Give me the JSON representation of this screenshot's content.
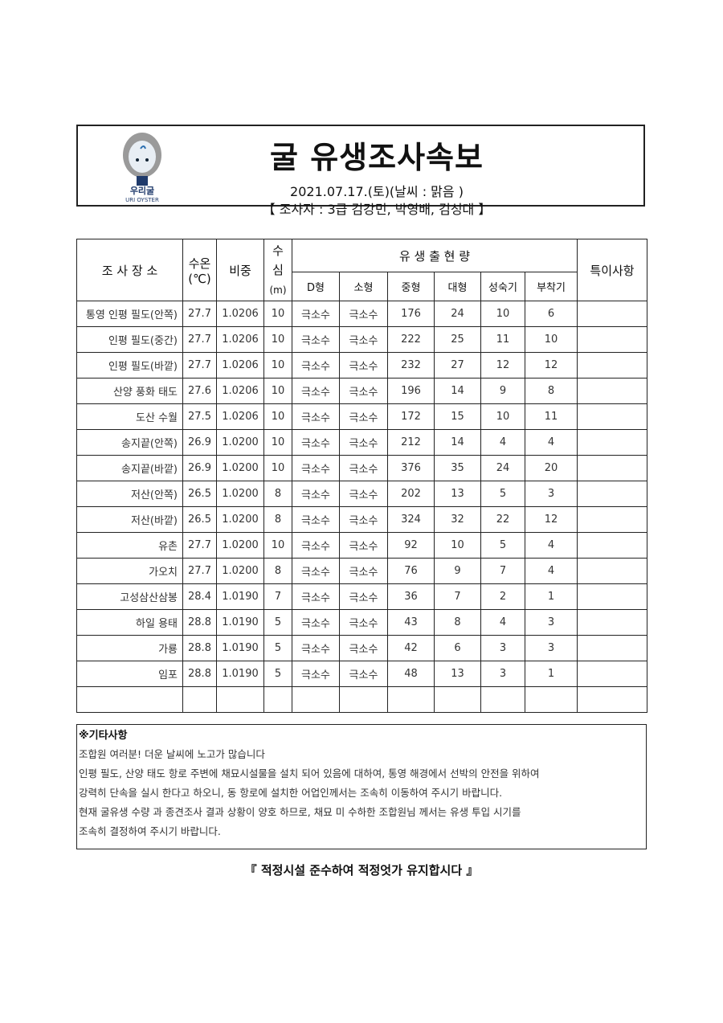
{
  "header": {
    "title": "굴 유생조사속보",
    "date_line": "2021.07.17.(토)(날씨 : 맑음 )",
    "surveyor_line": "【 조사자 : 3급 김강민, 박영배, 김성대 】",
    "logo_text": "우리굴",
    "logo_sub": "URI OYSTER"
  },
  "table": {
    "headers": {
      "location": "조 사 장 소",
      "temp": "수온",
      "temp_unit": "(℃)",
      "density": "비중",
      "depth1": "수",
      "depth2": "심",
      "depth3": "(m)",
      "larvae": "유   생   출   현   량",
      "remarks": "특이사항",
      "sub": [
        "D형",
        "소형",
        "중형",
        "대형",
        "성숙기",
        "부착기"
      ]
    },
    "rows": [
      [
        "통영 인평 필도(안쪽)",
        "27.7",
        "1.0206",
        "10",
        "극소수",
        "극소수",
        "176",
        "24",
        "10",
        "6"
      ],
      [
        "인평 필도(중간)",
        "27.7",
        "1.0206",
        "10",
        "극소수",
        "극소수",
        "222",
        "25",
        "11",
        "10"
      ],
      [
        "인평 필도(바깥)",
        "27.7",
        "1.0206",
        "10",
        "극소수",
        "극소수",
        "232",
        "27",
        "12",
        "12"
      ],
      [
        "산양 풍화 태도",
        "27.6",
        "1.0206",
        "10",
        "극소수",
        "극소수",
        "196",
        "14",
        "9",
        "8"
      ],
      [
        "도산 수월",
        "27.5",
        "1.0206",
        "10",
        "극소수",
        "극소수",
        "172",
        "15",
        "10",
        "11"
      ],
      [
        "송지끝(안쪽)",
        "26.9",
        "1.0200",
        "10",
        "극소수",
        "극소수",
        "212",
        "14",
        "4",
        "4"
      ],
      [
        "송지끝(바깥)",
        "26.9",
        "1.0200",
        "10",
        "극소수",
        "극소수",
        "376",
        "35",
        "24",
        "20"
      ],
      [
        "저산(안쪽)",
        "26.5",
        "1.0200",
        "8",
        "극소수",
        "극소수",
        "202",
        "13",
        "5",
        "3"
      ],
      [
        "저산(바깥)",
        "26.5",
        "1.0200",
        "8",
        "극소수",
        "극소수",
        "324",
        "32",
        "22",
        "12"
      ],
      [
        "유촌",
        "27.7",
        "1.0200",
        "10",
        "극소수",
        "극소수",
        "92",
        "10",
        "5",
        "4"
      ],
      [
        "가오치",
        "27.7",
        "1.0200",
        "8",
        "극소수",
        "극소수",
        "76",
        "9",
        "7",
        "4"
      ],
      [
        "고성삼산삼봉",
        "28.4",
        "1.0190",
        "7",
        "극소수",
        "극소수",
        "36",
        "7",
        "2",
        "1"
      ],
      [
        "하일 용태",
        "28.8",
        "1.0190",
        "5",
        "극소수",
        "극소수",
        "43",
        "8",
        "4",
        "3"
      ],
      [
        "가룡",
        "28.8",
        "1.0190",
        "5",
        "극소수",
        "극소수",
        "42",
        "6",
        "3",
        "3"
      ],
      [
        "임포",
        "28.8",
        "1.0190",
        "5",
        "극소수",
        "극소수",
        "48",
        "13",
        "3",
        "1"
      ]
    ]
  },
  "notes": {
    "title": "※기타사항",
    "lines": [
      "조합원 여러분! 더운 날씨에 노고가 많습니다",
      "인평 필도, 산양 태도 항로 주변에 채묘시설물을  설치 되어 있음에 대하여, 통영 해경에서 선박의 안전을 위하여",
      "강력히 단속을 실시 한다고 하오니, 동 항로에 설치한 어업인께서는 조속히 이동하여 주시기 바랍니다.",
      "현재 굴유생 수량 과 종견조사 결과 상황이 양호 하므로, 채묘 미 수하한 조합원님 께서는 유생 투입 시기를",
      "조속히 결정하여 주시기 바랍니다."
    ]
  },
  "footer": "『 적정시설 준수하여 적정엇가 유지합시다 』"
}
